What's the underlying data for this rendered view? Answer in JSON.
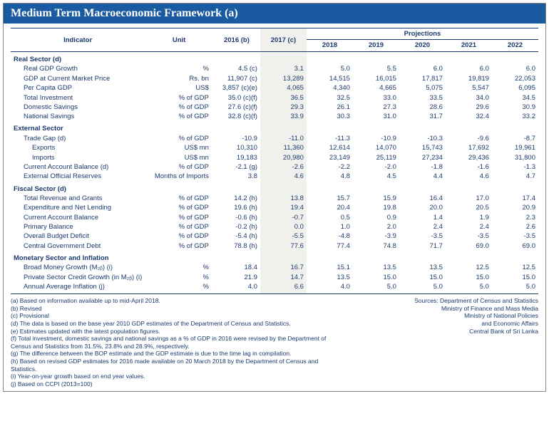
{
  "title": "Medium Term Macroeconomic Framework (a)",
  "headers": {
    "indicator": "Indicator",
    "unit": "Unit",
    "y2016": "2016 (b)",
    "y2017": "2017 (c)",
    "projections": "Projections",
    "y2018": "2018",
    "y2019": "2019",
    "y2020": "2020",
    "y2021": "2021",
    "y2022": "2022"
  },
  "sections": [
    {
      "name": "Real Sector (d)",
      "rows": [
        {
          "label": "Real GDP Growth",
          "unit": "%",
          "v": [
            "4.5 (c)",
            "3.1",
            "5.0",
            "5.5",
            "6.0",
            "6.0",
            "6.0"
          ]
        },
        {
          "label": "GDP at Current Market Price",
          "unit": "Rs. bn",
          "v": [
            "11,907 (c)",
            "13,289",
            "14,515",
            "16,015",
            "17,817",
            "19,819",
            "22,053"
          ]
        },
        {
          "label": "Per Capita GDP",
          "unit": "US$",
          "v": [
            "3,857 (c)(e)",
            "4,065",
            "4,340",
            "4,665",
            "5,075",
            "5,547",
            "6,095"
          ]
        },
        {
          "label": "Total Investment",
          "unit": "% of GDP",
          "v": [
            "35.0 (c)(f)",
            "36.5",
            "32.5",
            "33.0",
            "33.5",
            "34.0",
            "34.5"
          ]
        },
        {
          "label": "Domestic Savings",
          "unit": "% of GDP",
          "v": [
            "27.6 (c)(f)",
            "29.3",
            "26.1",
            "27.3",
            "28.6",
            "29.6",
            "30.9"
          ]
        },
        {
          "label": "National Savings",
          "unit": "% of GDP",
          "v": [
            "32.8 (c)(f)",
            "33.9",
            "30.3",
            "31.0",
            "31.7",
            "32.4",
            "33.2"
          ]
        }
      ]
    },
    {
      "name": "External Sector",
      "rows": [
        {
          "label": "Trade Gap (d)",
          "unit": "% of GDP",
          "v": [
            "-10.9",
            "-11.0",
            "-11.3",
            "-10.9",
            "-10.3",
            "-9.6",
            "-8.7"
          ]
        },
        {
          "label": "Exports",
          "sub": true,
          "unit": "US$ mn",
          "v": [
            "10,310",
            "11,360",
            "12,614",
            "14,070",
            "15,743",
            "17,692",
            "19,961"
          ]
        },
        {
          "label": "Imports",
          "sub": true,
          "unit": "US$ mn",
          "v": [
            "19,183",
            "20,980",
            "23,149",
            "25,119",
            "27,234",
            "29,436",
            "31,800"
          ]
        },
        {
          "label": "Current Account Balance (d)",
          "unit": "% of GDP",
          "v": [
            "-2.1 (g)",
            "-2.6",
            "-2.2",
            "-2.0",
            "-1.8",
            "-1.6",
            "-1.3"
          ]
        },
        {
          "label": "External Official Reserves",
          "unit": "Months of Imports",
          "v": [
            "3.8",
            "4.6",
            "4.8",
            "4.5",
            "4.4",
            "4.6",
            "4.7"
          ]
        }
      ]
    },
    {
      "name": "Fiscal Sector (d)",
      "rows": [
        {
          "label": "Total Revenue and Grants",
          "unit": "% of GDP",
          "v": [
            "14.2 (h)",
            "13.8",
            "15.7",
            "15.9",
            "16.4",
            "17.0",
            "17.4"
          ]
        },
        {
          "label": "Expenditure and Net Lending",
          "unit": "% of GDP",
          "v": [
            "19.6 (h)",
            "19.4",
            "20.4",
            "19.8",
            "20.0",
            "20.5",
            "20.9"
          ]
        },
        {
          "label": "Current Account Balance",
          "unit": "% of GDP",
          "v": [
            "-0.6 (h)",
            "-0.7",
            "0.5",
            "0.9",
            "1.4",
            "1.9",
            "2.3"
          ]
        },
        {
          "label": "Primary Balance",
          "unit": "% of GDP",
          "v": [
            "-0.2 (h)",
            "0.0",
            "1.0",
            "2.0",
            "2.4",
            "2.4",
            "2.6"
          ]
        },
        {
          "label": "Overall Budget Deficit",
          "unit": "% of GDP",
          "v": [
            "-5.4 (h)",
            "-5.5",
            "-4.8",
            "-3.9",
            "-3.5",
            "-3.5",
            "-3.5"
          ]
        },
        {
          "label": "Central Government Debt",
          "unit": "% of GDP",
          "v": [
            "78.8 (h)",
            "77.6",
            "77.4",
            "74.8",
            "71.7",
            "69.0",
            "69.0"
          ]
        }
      ]
    },
    {
      "name": "Monetary Sector and Inflation",
      "rows": [
        {
          "label": "Broad Money Growth (M₂ᵦ) (i)",
          "unit": "%",
          "v": [
            "18.4",
            "16.7",
            "15.1",
            "13.5",
            "13.5",
            "12.5",
            "12.5"
          ]
        },
        {
          "label": "Private Sector Credit Growth (in M₂ᵦ) (i)",
          "unit": "%",
          "v": [
            "21.9",
            "14.7",
            "13.5",
            "15.0",
            "15.0",
            "15.0",
            "15.0"
          ]
        },
        {
          "label": "Annual Average Inflation (j)",
          "unit": "%",
          "v": [
            "4.0",
            "6.6",
            "4.0",
            "5.0",
            "5.0",
            "5.0",
            "5.0"
          ]
        }
      ]
    }
  ],
  "footnotes": [
    "(a) Based on information available up to mid-April 2018.",
    "(b) Revised",
    "(c) Provisional",
    "(d) The data is based on the base year 2010 GDP estimates of the Department of Census and Statistics.",
    "(e) Estimates updated with the latest population figures.",
    "(f) Total investment, domestic savings and national savings as a % of GDP in 2016 were revised by the Department of Census and Statistics from 31.5%, 23.8% and 28.9%, respectively.",
    "(g) The difference between the BOP estimate and the GDP estimate is due to the time lag in compilation.",
    "(h) Based on revised GDP estimates for 2016 made available on 20 March 2018 by the Department of Census and Statistics.",
    "(i) Year-on-year growth based on end year values.",
    "(j) Based on CCPI (2013=100)"
  ],
  "sources": {
    "head": "Sources:",
    "lines": [
      "Department of Census and Statistics",
      "Ministry of Finance and Mass Media",
      "Ministry of National Policies",
      "and Economic Affairs",
      "Central Bank of Sri Lanka"
    ]
  },
  "colors": {
    "title_bg": "#1a5aa0",
    "text": "#1a3a6e",
    "highlight": "#f0f1ec"
  }
}
